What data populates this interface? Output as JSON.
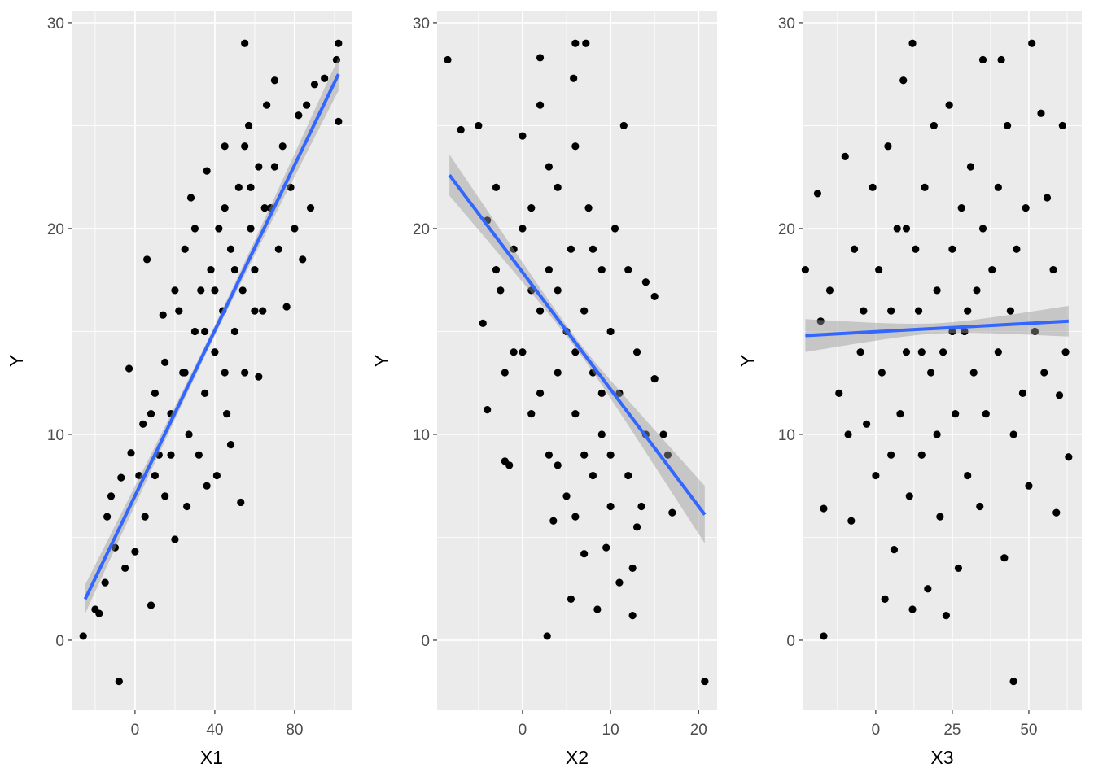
{
  "chart_data": [
    {
      "type": "scatter",
      "xlabel": "X1",
      "ylabel": "Y",
      "xlim": [
        -31.8,
        108.6
      ],
      "ylim": [
        -3.4,
        30.55
      ],
      "xticks": [
        0,
        40,
        80
      ],
      "yticks": [
        0,
        10,
        20,
        30
      ],
      "xminor": [
        -20,
        20,
        60,
        100
      ],
      "yminor": [
        5,
        15,
        25
      ],
      "grid": true,
      "point_color": "#000000",
      "fit": {
        "x": [
          -25,
          102
        ],
        "y": [
          2,
          27.5
        ],
        "color": "#3366FF",
        "ci_halfwidth_center": 0.25,
        "ci_halfwidth_ends": [
          0.7,
          0.8
        ]
      },
      "points": [
        [
          -26,
          0.2
        ],
        [
          -8,
          -2
        ],
        [
          55,
          29
        ],
        [
          102,
          29
        ],
        [
          101,
          28.2
        ],
        [
          102,
          25.2
        ],
        [
          6,
          18.5
        ],
        [
          53,
          6.7
        ],
        [
          8,
          1.7
        ],
        [
          -3,
          13.2
        ],
        [
          -20,
          1.5
        ],
        [
          -18,
          1.3
        ],
        [
          -15,
          2.8
        ],
        [
          -14,
          6
        ],
        [
          -12,
          7
        ],
        [
          -10,
          4.5
        ],
        [
          -7,
          7.9
        ],
        [
          -5,
          3.5
        ],
        [
          -2,
          9.1
        ],
        [
          0,
          4.3
        ],
        [
          2,
          8
        ],
        [
          4,
          10.5
        ],
        [
          5,
          6
        ],
        [
          10,
          12
        ],
        [
          12,
          9
        ],
        [
          14,
          15.8
        ],
        [
          15,
          7
        ],
        [
          18,
          11
        ],
        [
          20,
          4.9
        ],
        [
          22,
          16
        ],
        [
          24,
          13
        ],
        [
          25,
          19
        ],
        [
          27,
          10
        ],
        [
          28,
          21.5
        ],
        [
          30,
          15
        ],
        [
          32,
          9
        ],
        [
          33,
          17
        ],
        [
          35,
          12
        ],
        [
          36,
          22.8
        ],
        [
          38,
          18
        ],
        [
          40,
          14
        ],
        [
          41,
          8
        ],
        [
          42,
          20
        ],
        [
          44,
          16
        ],
        [
          45,
          24
        ],
        [
          46,
          11
        ],
        [
          48,
          19
        ],
        [
          50,
          15
        ],
        [
          52,
          22
        ],
        [
          54,
          17
        ],
        [
          55,
          13
        ],
        [
          57,
          25
        ],
        [
          58,
          20
        ],
        [
          60,
          18
        ],
        [
          62,
          23
        ],
        [
          64,
          16
        ],
        [
          66,
          26
        ],
        [
          68,
          21
        ],
        [
          70,
          27.2
        ],
        [
          72,
          19
        ],
        [
          74,
          24
        ],
        [
          76,
          16.2
        ],
        [
          78,
          22
        ],
        [
          80,
          20
        ],
        [
          82,
          25.5
        ],
        [
          84,
          18.5
        ],
        [
          86,
          26
        ],
        [
          88,
          21
        ],
        [
          90,
          27
        ],
        [
          95,
          27.3
        ],
        [
          26,
          6.5
        ],
        [
          36,
          7.5
        ],
        [
          48,
          9.5
        ],
        [
          62,
          12.8
        ],
        [
          15,
          13.5
        ],
        [
          20,
          17
        ],
        [
          30,
          20
        ],
        [
          45,
          21
        ],
        [
          55,
          24
        ],
        [
          65,
          21
        ],
        [
          70,
          23
        ],
        [
          40,
          17
        ],
        [
          35,
          15
        ],
        [
          25,
          13
        ],
        [
          18,
          9
        ],
        [
          10,
          8
        ],
        [
          8,
          11
        ],
        [
          45,
          13
        ],
        [
          50,
          18
        ],
        [
          60,
          16
        ],
        [
          58,
          22
        ]
      ]
    },
    {
      "type": "scatter",
      "xlabel": "X2",
      "ylabel": "Y",
      "xlim": [
        -9.7,
        22.1
      ],
      "ylim": [
        -3.4,
        30.55
      ],
      "xticks": [
        0,
        10,
        20
      ],
      "yticks": [
        0,
        10,
        20,
        30
      ],
      "xminor": [
        -5,
        5,
        15
      ],
      "yminor": [
        5,
        15,
        25
      ],
      "grid": true,
      "point_color": "#000000",
      "fit": {
        "x": [
          -8.3,
          20.7
        ],
        "y": [
          22.6,
          6.1
        ],
        "color": "#3366FF",
        "ci_halfwidth_center": 0.25,
        "ci_halfwidth_ends": [
          1.0,
          1.4
        ]
      },
      "points": [
        [
          -8.5,
          28.2
        ],
        [
          6,
          29
        ],
        [
          7.2,
          29
        ],
        [
          2,
          28.3
        ],
        [
          5.8,
          27.3
        ],
        [
          20.7,
          -2
        ],
        [
          2.8,
          0.2
        ],
        [
          -7,
          24.8
        ],
        [
          -5,
          25
        ],
        [
          -4,
          20.4
        ],
        [
          -3,
          22
        ],
        [
          -4.5,
          15.4
        ],
        [
          -4,
          11.2
        ],
        [
          -2,
          8.7
        ],
        [
          -1.5,
          8.5
        ],
        [
          -2.5,
          17
        ],
        [
          -1,
          19
        ],
        [
          0,
          24.5
        ],
        [
          0,
          14
        ],
        [
          1,
          21
        ],
        [
          1,
          11
        ],
        [
          2,
          16
        ],
        [
          2,
          26
        ],
        [
          3,
          18
        ],
        [
          3,
          9
        ],
        [
          3.5,
          5.8
        ],
        [
          4,
          13
        ],
        [
          4,
          22
        ],
        [
          5,
          15
        ],
        [
          5,
          7
        ],
        [
          5.5,
          19
        ],
        [
          5.5,
          2
        ],
        [
          6,
          11
        ],
        [
          6,
          24
        ],
        [
          7,
          16
        ],
        [
          7,
          4.2
        ],
        [
          7.5,
          21
        ],
        [
          8,
          13
        ],
        [
          8,
          8
        ],
        [
          8.5,
          1.5
        ],
        [
          9,
          18
        ],
        [
          9,
          10
        ],
        [
          9.5,
          4.5
        ],
        [
          10,
          15
        ],
        [
          10,
          6.5
        ],
        [
          10.5,
          20
        ],
        [
          11,
          12
        ],
        [
          11,
          2.8
        ],
        [
          11.5,
          25
        ],
        [
          12,
          8
        ],
        [
          12,
          18
        ],
        [
          12.5,
          1.2
        ],
        [
          13,
          5.5
        ],
        [
          13,
          14
        ],
        [
          14,
          17.4
        ],
        [
          14,
          10
        ],
        [
          15,
          16.7
        ],
        [
          15,
          12.7
        ],
        [
          16,
          10
        ],
        [
          16.5,
          9
        ],
        [
          17,
          6.2
        ],
        [
          13.5,
          6.5
        ],
        [
          12.5,
          3.5
        ],
        [
          -3,
          18
        ],
        [
          -1,
          14
        ],
        [
          1,
          17
        ],
        [
          3,
          23
        ],
        [
          4,
          17
        ],
        [
          6,
          14
        ],
        [
          7,
          9
        ],
        [
          8,
          19
        ],
        [
          9,
          12
        ],
        [
          10,
          9
        ],
        [
          2,
          12
        ],
        [
          0,
          20
        ],
        [
          -2,
          13
        ],
        [
          4,
          8.5
        ],
        [
          6,
          6
        ]
      ]
    },
    {
      "type": "scatter",
      "xlabel": "X3",
      "ylabel": "Y",
      "xlim": [
        -23.9,
        67.3
      ],
      "ylim": [
        -3.4,
        30.55
      ],
      "xticks": [
        0,
        25,
        50
      ],
      "yticks": [
        0,
        10,
        20,
        30
      ],
      "xminor": [
        -12.5,
        12.5,
        37.5,
        62.5
      ],
      "yminor": [
        5,
        15,
        25
      ],
      "grid": true,
      "point_color": "#000000",
      "fit": {
        "x": [
          -23,
          63
        ],
        "y": [
          14.8,
          15.5
        ],
        "color": "#3366FF",
        "ci_halfwidth_center": 0.25,
        "ci_halfwidth_ends": [
          0.8,
          0.75
        ]
      },
      "points": [
        [
          -17,
          0.2
        ],
        [
          45,
          -2
        ],
        [
          51,
          29
        ],
        [
          12,
          29
        ],
        [
          -23,
          18
        ],
        [
          -19,
          21.7
        ],
        [
          -18,
          15.5
        ],
        [
          -17,
          6.4
        ],
        [
          -15,
          17
        ],
        [
          -12,
          12
        ],
        [
          -10,
          23.5
        ],
        [
          -9,
          10
        ],
        [
          -8,
          5.8
        ],
        [
          -7,
          19
        ],
        [
          -5,
          14
        ],
        [
          -4,
          16
        ],
        [
          -3,
          10.5
        ],
        [
          -1,
          22
        ],
        [
          0,
          8
        ],
        [
          1,
          18
        ],
        [
          2,
          13
        ],
        [
          3,
          2
        ],
        [
          4,
          24
        ],
        [
          5,
          16
        ],
        [
          6,
          4.4
        ],
        [
          7,
          20
        ],
        [
          8,
          11
        ],
        [
          9,
          27.2
        ],
        [
          10,
          14
        ],
        [
          11,
          7
        ],
        [
          12,
          1.5
        ],
        [
          13,
          19
        ],
        [
          14,
          16
        ],
        [
          15,
          9
        ],
        [
          16,
          22
        ],
        [
          17,
          2.5
        ],
        [
          18,
          13
        ],
        [
          19,
          25
        ],
        [
          20,
          17
        ],
        [
          21,
          6
        ],
        [
          22,
          14
        ],
        [
          23,
          1.2
        ],
        [
          24,
          26
        ],
        [
          25,
          19
        ],
        [
          26,
          11
        ],
        [
          27,
          3.5
        ],
        [
          28,
          21
        ],
        [
          29,
          15
        ],
        [
          30,
          8
        ],
        [
          31,
          23
        ],
        [
          32,
          13
        ],
        [
          33,
          17
        ],
        [
          34,
          6.5
        ],
        [
          35,
          20
        ],
        [
          36,
          11
        ],
        [
          38,
          18
        ],
        [
          40,
          14
        ],
        [
          41,
          28.2
        ],
        [
          42,
          4
        ],
        [
          43,
          25
        ],
        [
          44,
          16
        ],
        [
          45,
          10
        ],
        [
          46,
          19
        ],
        [
          48,
          12
        ],
        [
          49,
          21
        ],
        [
          50,
          7.5
        ],
        [
          52,
          15
        ],
        [
          54,
          25.6
        ],
        [
          55,
          13
        ],
        [
          56,
          21.5
        ],
        [
          58,
          18
        ],
        [
          59,
          6.2
        ],
        [
          60,
          11.9
        ],
        [
          61,
          25
        ],
        [
          62,
          14
        ],
        [
          63,
          8.9
        ],
        [
          35,
          28.2
        ],
        [
          20,
          10
        ],
        [
          25,
          15
        ],
        [
          15,
          14
        ],
        [
          30,
          16
        ],
        [
          10,
          20
        ],
        [
          5,
          9
        ],
        [
          40,
          22
        ]
      ]
    }
  ]
}
